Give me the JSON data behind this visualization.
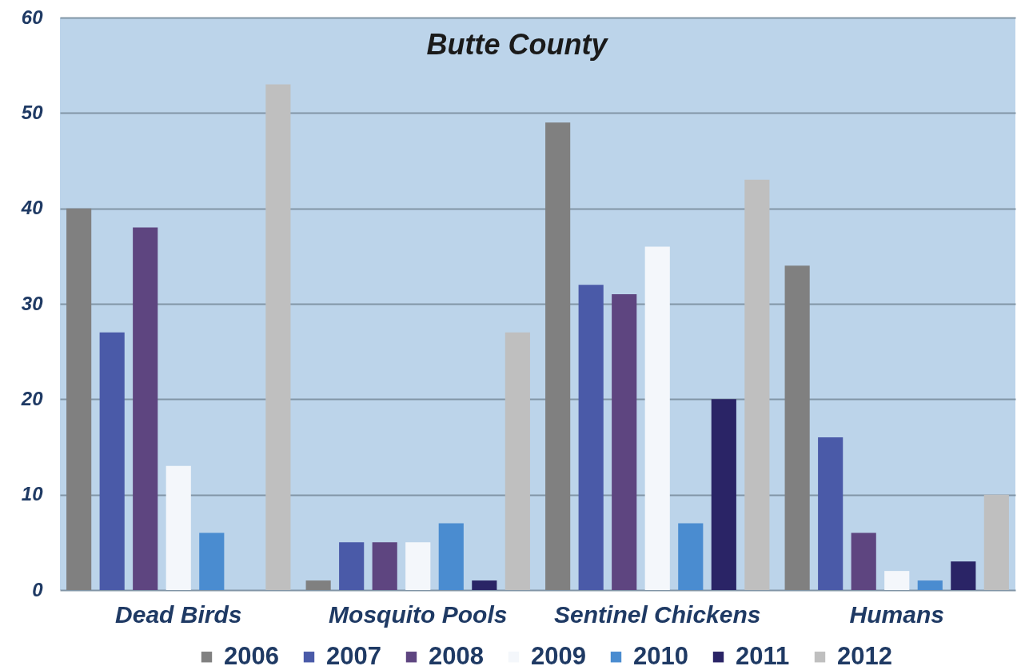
{
  "chart_data": {
    "type": "bar",
    "title": "Butte County",
    "categories": [
      "Dead Birds",
      "Mosquito Pools",
      "Sentinel Chickens",
      "Humans"
    ],
    "series": [
      {
        "name": "2006",
        "color": "#808080",
        "values": [
          40,
          1,
          49,
          34
        ]
      },
      {
        "name": "2007",
        "color": "#4a5aa8",
        "values": [
          27,
          5,
          32,
          16
        ]
      },
      {
        "name": "2008",
        "color": "#5e4580",
        "values": [
          38,
          5,
          31,
          6
        ]
      },
      {
        "name": "2009",
        "color": "#f4f7fb",
        "values": [
          13,
          5,
          36,
          2
        ]
      },
      {
        "name": "2010",
        "color": "#4a8cd0",
        "values": [
          6,
          7,
          7,
          1
        ]
      },
      {
        "name": "2011",
        "color": "#2a2466",
        "values": [
          null,
          1,
          20,
          3
        ]
      },
      {
        "name": "2012",
        "color": "#bfbfbf",
        "values": [
          53,
          27,
          43,
          10
        ]
      }
    ],
    "ylim": [
      0,
      60
    ],
    "yticks": [
      0,
      10,
      20,
      30,
      40,
      50,
      60
    ],
    "grid": "y",
    "legend": "bottom"
  }
}
